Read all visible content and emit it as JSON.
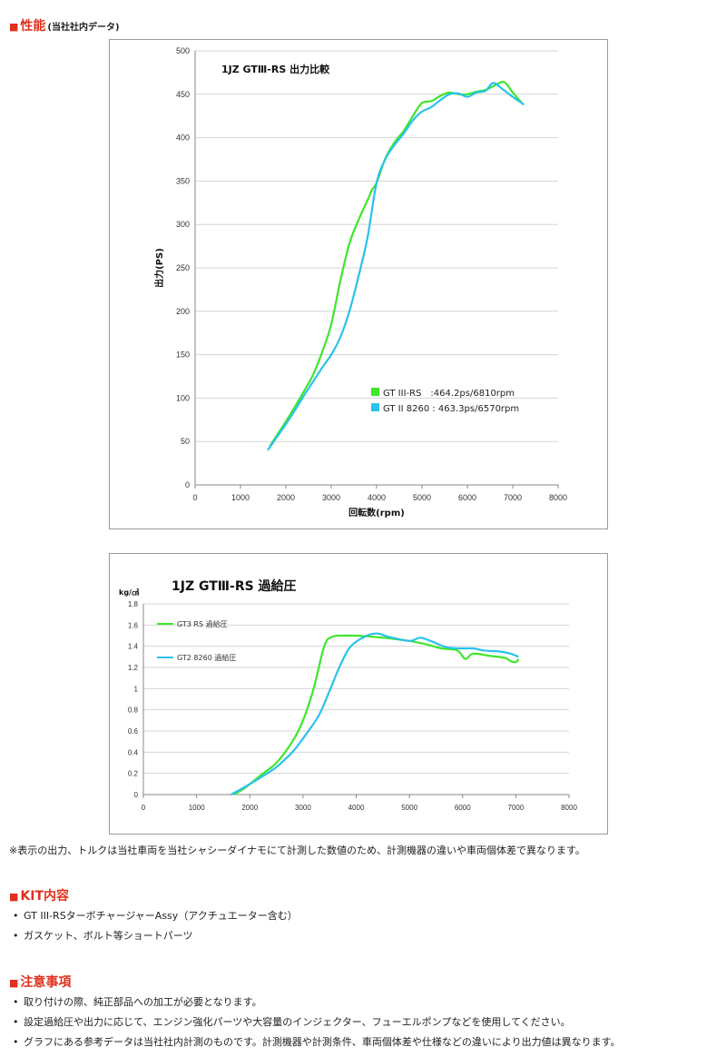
{
  "performance": {
    "title": "性能",
    "subtitle": "(当社社内データ)"
  },
  "chart_data": [
    {
      "type": "line",
      "title": "1JZ GTⅢ-RS 出力比較",
      "xlabel": "回転数(rpm)",
      "ylabel": "出力(PS)",
      "xlim": [
        0,
        8000
      ],
      "ylim": [
        0,
        500
      ],
      "xticks": [
        "0",
        "1000",
        "2000",
        "3000",
        "4000",
        "5000",
        "6000",
        "7000",
        "8000"
      ],
      "yticks": [
        "0",
        "50",
        "100",
        "150",
        "200",
        "250",
        "300",
        "350",
        "400",
        "450",
        "500"
      ],
      "grid": "horizontal",
      "legend_position": "bottom-right inside",
      "series": [
        {
          "name": "GT III-RS　:464.2ps/6810rpm",
          "color": "#3ee62b",
          "points": [
            [
              1650,
              45
            ],
            [
              1800,
              57
            ],
            [
              2000,
              73
            ],
            [
              2200,
              90
            ],
            [
              2400,
              108
            ],
            [
              2600,
              127
            ],
            [
              2800,
              153
            ],
            [
              3000,
              185
            ],
            [
              3200,
              235
            ],
            [
              3400,
              278
            ],
            [
              3600,
              305
            ],
            [
              3800,
              328
            ],
            [
              3900,
              340
            ],
            [
              4000,
              348
            ],
            [
              4200,
              377
            ],
            [
              4400,
              395
            ],
            [
              4600,
              408
            ],
            [
              4800,
              425
            ],
            [
              5000,
              440
            ],
            [
              5200,
              442
            ],
            [
              5400,
              448
            ],
            [
              5600,
              452
            ],
            [
              5800,
              450
            ],
            [
              6000,
              450
            ],
            [
              6200,
              453
            ],
            [
              6400,
              455
            ],
            [
              6600,
              460
            ],
            [
              6810,
              464
            ],
            [
              7000,
              452
            ],
            [
              7200,
              440
            ]
          ]
        },
        {
          "name": "GT II 8260 : 463.3ps/6570rpm",
          "color": "#29c2ec",
          "points": [
            [
              1600,
              40
            ],
            [
              1800,
              55
            ],
            [
              2000,
              70
            ],
            [
              2200,
              86
            ],
            [
              2400,
              103
            ],
            [
              2600,
              119
            ],
            [
              2800,
              135
            ],
            [
              3000,
              150
            ],
            [
              3200,
              170
            ],
            [
              3400,
              200
            ],
            [
              3600,
              240
            ],
            [
              3800,
              285
            ],
            [
              4000,
              348
            ],
            [
              4200,
              376
            ],
            [
              4400,
              392
            ],
            [
              4600,
              405
            ],
            [
              4800,
              420
            ],
            [
              5000,
              430
            ],
            [
              5200,
              435
            ],
            [
              5400,
              443
            ],
            [
              5600,
              450
            ],
            [
              5800,
              451
            ],
            [
              6000,
              447
            ],
            [
              6200,
              452
            ],
            [
              6400,
              454
            ],
            [
              6570,
              463
            ],
            [
              6800,
              455
            ],
            [
              7000,
              447
            ],
            [
              7250,
              438
            ]
          ]
        }
      ]
    },
    {
      "type": "line",
      "title": "1JZ GTⅢ-RS 過給圧",
      "ylabel": "kg/㎠",
      "xlabel": "",
      "xlim": [
        0,
        8000
      ],
      "ylim": [
        0,
        1.8
      ],
      "xticks": [
        "0",
        "1000",
        "2000",
        "3000",
        "4000",
        "5000",
        "6000",
        "7000",
        "8000"
      ],
      "yticks": [
        "0",
        "0.2",
        "0.4",
        "0.6",
        "0.8",
        "1",
        "1.2",
        "1.4",
        "1.6",
        "1.8"
      ],
      "grid": "horizontal",
      "legend_position": "top-left inside",
      "series": [
        {
          "name": "GT3 RS 過給圧",
          "color": "#3ee62b",
          "points": [
            [
              1700,
              0
            ],
            [
              1900,
              0.06
            ],
            [
              2200,
              0.18
            ],
            [
              2500,
              0.3
            ],
            [
              2800,
              0.5
            ],
            [
              3000,
              0.7
            ],
            [
              3200,
              1.0
            ],
            [
              3400,
              1.4
            ],
            [
              3550,
              1.49
            ],
            [
              3800,
              1.5
            ],
            [
              4000,
              1.5
            ],
            [
              4300,
              1.49
            ],
            [
              4700,
              1.47
            ],
            [
              5000,
              1.45
            ],
            [
              5300,
              1.42
            ],
            [
              5600,
              1.38
            ],
            [
              5900,
              1.36
            ],
            [
              6050,
              1.28
            ],
            [
              6200,
              1.33
            ],
            [
              6500,
              1.31
            ],
            [
              6800,
              1.29
            ],
            [
              6900,
              1.26
            ],
            [
              7000,
              1.25
            ],
            [
              7050,
              1.28
            ]
          ]
        },
        {
          "name": "GT2 8260 過給圧",
          "color": "#29c2ec",
          "points": [
            [
              1650,
              0
            ],
            [
              1900,
              0.07
            ],
            [
              2200,
              0.16
            ],
            [
              2500,
              0.26
            ],
            [
              2800,
              0.4
            ],
            [
              3000,
              0.53
            ],
            [
              3300,
              0.75
            ],
            [
              3500,
              0.98
            ],
            [
              3700,
              1.22
            ],
            [
              3900,
              1.4
            ],
            [
              4200,
              1.5
            ],
            [
              4400,
              1.52
            ],
            [
              4600,
              1.49
            ],
            [
              5000,
              1.45
            ],
            [
              5200,
              1.48
            ],
            [
              5400,
              1.45
            ],
            [
              5700,
              1.39
            ],
            [
              6000,
              1.38
            ],
            [
              6200,
              1.38
            ],
            [
              6400,
              1.36
            ],
            [
              6700,
              1.35
            ],
            [
              6900,
              1.33
            ],
            [
              7050,
              1.3
            ]
          ]
        }
      ]
    }
  ],
  "note": "※表示の出力、トルクは当社車両を当社シャシーダイナモにて計測した数値のため、計測機器の違いや車両個体差で異なります。",
  "kit": {
    "title": "KIT内容",
    "items": [
      "GT III-RSターボチャージャーAssy（アクチュエーター含む）",
      "ガスケット、ボルト等ショートパーツ"
    ]
  },
  "cautions": {
    "title": "注意事項",
    "items": [
      "取り付けの際、純正部品への加工が必要となります。",
      "設定過給圧や出力に応じて、エンジン強化パーツや大容量のインジェクター、フューエルポンプなどを使用してください。",
      "グラフにある参考データは当社社内計測のものです。計測機器や計測条件、車両個体差や仕様などの違いにより出力値は異なります。"
    ]
  }
}
